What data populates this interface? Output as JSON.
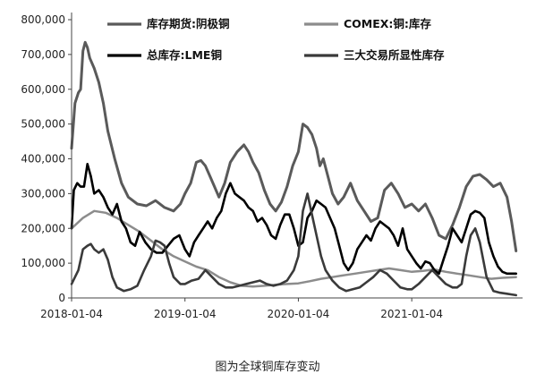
{
  "chart_data": {
    "type": "line",
    "title": "",
    "caption": "图为全球铜库存变动",
    "ylim": [
      0,
      800000
    ],
    "y_ticks": [
      "800,000",
      "700,000",
      "600,000",
      "500,000",
      "400,000",
      "300,000",
      "200,000",
      "100,000",
      "0"
    ],
    "y_tick_values": [
      800000,
      700000,
      600000,
      500000,
      400000,
      300000,
      200000,
      100000,
      0
    ],
    "x_ticks": [
      "2018-01-04",
      "2019-01-04",
      "2020-01-04",
      "2021-01-04"
    ],
    "x_tick_values": [
      2018.0,
      2019.0,
      2020.0,
      2021.0
    ],
    "xlim": [
      2018.0,
      2021.93
    ],
    "grid": false,
    "legend_position": "top",
    "series": [
      {
        "name": "库存期货:阴极铜",
        "color": "#5a5a5a",
        "width": 3,
        "x": [
          2018.0,
          2018.03,
          2018.06,
          2018.08,
          2018.1,
          2018.12,
          2018.14,
          2018.16,
          2018.2,
          2018.24,
          2018.28,
          2018.32,
          2018.38,
          2018.44,
          2018.5,
          2018.58,
          2018.66,
          2018.74,
          2018.82,
          2018.9,
          2018.96,
          2019.0,
          2019.05,
          2019.1,
          2019.14,
          2019.18,
          2019.22,
          2019.26,
          2019.3,
          2019.35,
          2019.4,
          2019.46,
          2019.52,
          2019.56,
          2019.6,
          2019.65,
          2019.7,
          2019.75,
          2019.8,
          2019.85,
          2019.9,
          2019.95,
          2020.0,
          2020.04,
          2020.08,
          2020.12,
          2020.16,
          2020.19,
          2020.22,
          2020.26,
          2020.3,
          2020.35,
          2020.4,
          2020.46,
          2020.52,
          2020.58,
          2020.64,
          2020.7,
          2020.76,
          2020.82,
          2020.88,
          2020.94,
          2021.0,
          2021.06,
          2021.12,
          2021.18,
          2021.24,
          2021.3,
          2021.36,
          2021.42,
          2021.48,
          2021.54,
          2021.6,
          2021.66,
          2021.72,
          2021.78,
          2021.84,
          2021.88,
          2021.92
        ],
        "values": [
          430000,
          560000,
          590000,
          600000,
          710000,
          735000,
          720000,
          690000,
          660000,
          620000,
          560000,
          480000,
          400000,
          330000,
          290000,
          270000,
          265000,
          280000,
          260000,
          250000,
          270000,
          300000,
          330000,
          390000,
          395000,
          380000,
          350000,
          320000,
          290000,
          330000,
          390000,
          420000,
          440000,
          420000,
          390000,
          360000,
          310000,
          270000,
          250000,
          275000,
          320000,
          380000,
          420000,
          500000,
          490000,
          470000,
          430000,
          380000,
          400000,
          350000,
          300000,
          270000,
          290000,
          330000,
          280000,
          250000,
          220000,
          230000,
          310000,
          330000,
          300000,
          260000,
          270000,
          250000,
          270000,
          230000,
          180000,
          170000,
          210000,
          260000,
          320000,
          350000,
          355000,
          340000,
          320000,
          330000,
          290000,
          220000,
          135000
        ]
      },
      {
        "name": "COMEX:铜:库存",
        "color": "#8c8c8c",
        "width": 2.5,
        "x": [
          2018.0,
          2018.1,
          2018.2,
          2018.3,
          2018.4,
          2018.5,
          2018.6,
          2018.7,
          2018.8,
          2018.9,
          2019.0,
          2019.1,
          2019.2,
          2019.3,
          2019.4,
          2019.5,
          2019.6,
          2019.7,
          2019.8,
          2019.9,
          2020.0,
          2020.1,
          2020.2,
          2020.3,
          2020.4,
          2020.5,
          2020.6,
          2020.7,
          2020.8,
          2020.9,
          2021.0,
          2021.1,
          2021.2,
          2021.3,
          2021.4,
          2021.5,
          2021.6,
          2021.7,
          2021.8,
          2021.92
        ],
        "values": [
          200000,
          230000,
          250000,
          245000,
          230000,
          210000,
          190000,
          165000,
          140000,
          120000,
          105000,
          90000,
          80000,
          60000,
          45000,
          35000,
          33000,
          35000,
          38000,
          40000,
          42000,
          48000,
          55000,
          60000,
          65000,
          70000,
          75000,
          80000,
          85000,
          80000,
          75000,
          78000,
          82000,
          75000,
          70000,
          65000,
          60000,
          55000,
          58000,
          60000
        ]
      },
      {
        "name": "总库存:LME铜",
        "color": "#000000",
        "width": 2.6,
        "x": [
          2018.0,
          2018.02,
          2018.05,
          2018.08,
          2018.11,
          2018.14,
          2018.17,
          2018.2,
          2018.24,
          2018.28,
          2018.32,
          2018.36,
          2018.4,
          2018.44,
          2018.48,
          2018.52,
          2018.56,
          2018.6,
          2018.65,
          2018.7,
          2018.75,
          2018.8,
          2018.85,
          2018.9,
          2018.95,
          2019.0,
          2019.04,
          2019.08,
          2019.12,
          2019.16,
          2019.2,
          2019.24,
          2019.28,
          2019.32,
          2019.36,
          2019.4,
          2019.44,
          2019.48,
          2019.52,
          2019.56,
          2019.6,
          2019.64,
          2019.68,
          2019.72,
          2019.76,
          2019.8,
          2019.84,
          2019.88,
          2019.92,
          2019.96,
          2020.0,
          2020.04,
          2020.08,
          2020.12,
          2020.16,
          2020.2,
          2020.24,
          2020.28,
          2020.32,
          2020.36,
          2020.4,
          2020.44,
          2020.48,
          2020.52,
          2020.56,
          2020.6,
          2020.64,
          2020.68,
          2020.72,
          2020.76,
          2020.8,
          2020.84,
          2020.88,
          2020.92,
          2020.96,
          2021.0,
          2021.04,
          2021.08,
          2021.12,
          2021.16,
          2021.2,
          2021.24,
          2021.28,
          2021.32,
          2021.36,
          2021.4,
          2021.44,
          2021.48,
          2021.52,
          2021.56,
          2021.6,
          2021.64,
          2021.68,
          2021.72,
          2021.76,
          2021.8,
          2021.84,
          2021.88,
          2021.92
        ],
        "values": [
          200000,
          310000,
          330000,
          320000,
          320000,
          385000,
          350000,
          300000,
          310000,
          290000,
          260000,
          240000,
          270000,
          220000,
          200000,
          160000,
          150000,
          190000,
          160000,
          140000,
          130000,
          130000,
          150000,
          170000,
          180000,
          140000,
          120000,
          160000,
          180000,
          200000,
          220000,
          200000,
          230000,
          250000,
          300000,
          330000,
          300000,
          290000,
          280000,
          260000,
          250000,
          220000,
          230000,
          210000,
          180000,
          170000,
          210000,
          240000,
          240000,
          200000,
          150000,
          160000,
          230000,
          250000,
          280000,
          270000,
          260000,
          230000,
          200000,
          150000,
          100000,
          80000,
          100000,
          140000,
          160000,
          180000,
          165000,
          200000,
          220000,
          210000,
          200000,
          180000,
          150000,
          200000,
          140000,
          120000,
          100000,
          85000,
          105000,
          100000,
          80000,
          70000,
          110000,
          150000,
          200000,
          180000,
          160000,
          200000,
          240000,
          250000,
          245000,
          230000,
          160000,
          120000,
          90000,
          75000,
          70000,
          70000,
          70000
        ]
      },
      {
        "name": "三大交易所显性库存",
        "color": "#3a3a3a",
        "width": 2.6,
        "x": [
          2018.0,
          2018.03,
          2018.06,
          2018.1,
          2018.14,
          2018.17,
          2018.2,
          2018.24,
          2018.28,
          2018.32,
          2018.36,
          2018.4,
          2018.46,
          2018.52,
          2018.58,
          2018.64,
          2018.7,
          2018.74,
          2018.78,
          2018.82,
          2018.86,
          2018.9,
          2018.96,
          2019.0,
          2019.06,
          2019.12,
          2019.18,
          2019.24,
          2019.3,
          2019.36,
          2019.42,
          2019.48,
          2019.54,
          2019.6,
          2019.66,
          2019.72,
          2019.78,
          2019.84,
          2019.9,
          2019.96,
          2020.0,
          2020.04,
          2020.08,
          2020.12,
          2020.16,
          2020.2,
          2020.24,
          2020.3,
          2020.36,
          2020.42,
          2020.48,
          2020.54,
          2020.6,
          2020.66,
          2020.72,
          2020.78,
          2020.84,
          2020.9,
          2020.96,
          2021.0,
          2021.06,
          2021.12,
          2021.18,
          2021.24,
          2021.3,
          2021.36,
          2021.4,
          2021.44,
          2021.48,
          2021.52,
          2021.56,
          2021.6,
          2021.66,
          2021.72,
          2021.78,
          2021.84,
          2021.88,
          2021.92
        ],
        "values": [
          40000,
          60000,
          80000,
          140000,
          150000,
          155000,
          140000,
          130000,
          140000,
          110000,
          60000,
          30000,
          20000,
          25000,
          35000,
          80000,
          120000,
          165000,
          160000,
          150000,
          100000,
          60000,
          40000,
          40000,
          50000,
          55000,
          80000,
          60000,
          40000,
          30000,
          30000,
          35000,
          40000,
          45000,
          50000,
          40000,
          35000,
          40000,
          50000,
          80000,
          120000,
          250000,
          300000,
          240000,
          180000,
          120000,
          80000,
          50000,
          30000,
          20000,
          25000,
          30000,
          45000,
          60000,
          80000,
          70000,
          50000,
          30000,
          25000,
          25000,
          40000,
          60000,
          80000,
          60000,
          40000,
          30000,
          30000,
          40000,
          120000,
          180000,
          200000,
          160000,
          60000,
          20000,
          15000,
          12000,
          10000,
          8000
        ]
      }
    ]
  }
}
